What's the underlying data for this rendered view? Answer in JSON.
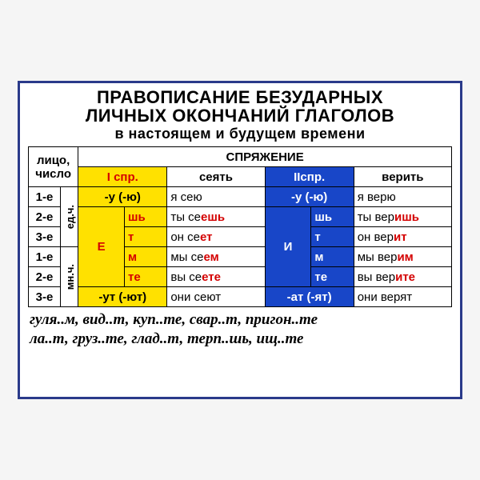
{
  "title": {
    "l1": "ПРАВОПИСАНИЕ БЕЗУДАРНЫХ",
    "l2": "ЛИЧНЫХ ОКОНЧАНИЙ ГЛАГОЛОВ",
    "l3": "в настоящем и будущем времени"
  },
  "colors": {
    "frame": "#2a3a8a",
    "yellow": "#ffe100",
    "blue": "#1846c8",
    "red": "#d40000"
  },
  "table": {
    "corner_l1": "лицо,",
    "corner_l2": "число",
    "super_header": "СПРЯЖЕНИЕ",
    "sp1_label": "I спр.",
    "sp2_label": "IIспр.",
    "inf1": "сеять",
    "inf2": "верить",
    "vlabel_sg": "ед.ч.",
    "vlabel_pl": "мн.ч.",
    "rows": [
      "1-е",
      "2-е",
      "3-е",
      "1-е",
      "2-е",
      "3-е"
    ],
    "bigE": "Е",
    "bigI": "И",
    "e_suffixes": [
      "шь",
      "т",
      "м",
      "те"
    ],
    "i_suffixes": [
      "шь",
      "т",
      "м",
      "те"
    ],
    "r1_sp1_end": "-у (-ю)",
    "r1_sp2_end": "-у (-ю)",
    "r6_sp1_end": "-ут (-ют)",
    "r6_sp2_end": "-ат (-ят)",
    "ex1": {
      "r1": {
        "a": "я сею"
      },
      "r2": {
        "a": "ты се",
        "h": "ешь"
      },
      "r3": {
        "a": "он се",
        "h": "ет"
      },
      "r4": {
        "a": "мы се",
        "h": "ем"
      },
      "r5": {
        "a": "вы се",
        "h": "ете"
      },
      "r6": {
        "a": "они сеют"
      }
    },
    "ex2": {
      "r1": {
        "a": "я верю"
      },
      "r2": {
        "a": "ты вер",
        "h": "ишь"
      },
      "r3": {
        "a": "он вер",
        "h": "ит"
      },
      "r4": {
        "a": "мы вер",
        "h": "им"
      },
      "r5": {
        "a": "вы вер",
        "h": "ите"
      },
      "r6": {
        "a": "они верят"
      }
    }
  },
  "examples": {
    "l1": "гуля..м, вид..т, куп..те, свар..т, пригон..те",
    "l2": "ла..т, груз..те, глад..т, терп..шь, ищ..те"
  }
}
